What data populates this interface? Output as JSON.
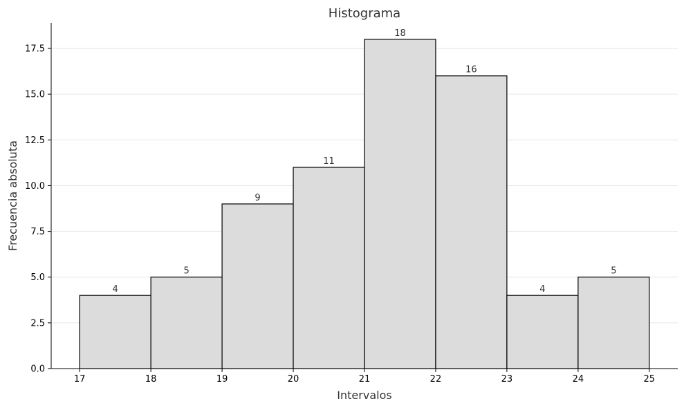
{
  "chart_data": {
    "type": "bar",
    "title": "Histograma",
    "xlabel": "Intervalos",
    "ylabel": "Frecuencia absoluta",
    "bins": [
      {
        "start": 17,
        "end": 18,
        "value": 4
      },
      {
        "start": 18,
        "end": 19,
        "value": 5
      },
      {
        "start": 19,
        "end": 20,
        "value": 9
      },
      {
        "start": 20,
        "end": 21,
        "value": 11
      },
      {
        "start": 21,
        "end": 22,
        "value": 18
      },
      {
        "start": 22,
        "end": 23,
        "value": 16
      },
      {
        "start": 23,
        "end": 24,
        "value": 4
      },
      {
        "start": 24,
        "end": 25,
        "value": 5
      }
    ],
    "xlim": [
      16.6,
      25.4
    ],
    "ylim": [
      0,
      18.9
    ],
    "xticks": [
      "17",
      "18",
      "19",
      "20",
      "21",
      "22",
      "23",
      "24",
      "25"
    ],
    "yticks": [
      "0.0",
      "2.5",
      "5.0",
      "7.5",
      "10.0",
      "12.5",
      "15.0",
      "17.5"
    ],
    "grid": "horizontal",
    "colors": {
      "bar_fill": "#dcdcdc",
      "bar_edge": "#000000",
      "grid": "#e6e6e6"
    }
  }
}
